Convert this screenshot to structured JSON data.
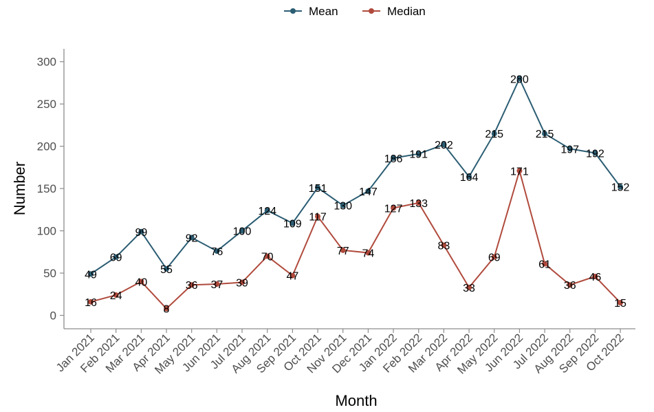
{
  "chart_data": {
    "type": "line",
    "xlabel": "Month",
    "ylabel": "Number",
    "ylim": [
      0,
      300
    ],
    "yticks": [
      0,
      50,
      100,
      150,
      200,
      250,
      300
    ],
    "grid": false,
    "legend_position": "top",
    "categories": [
      "Jan 2021",
      "Feb 2021",
      "Mar 2021",
      "Apr 2021",
      "May 2021",
      "Jun 2021",
      "Jul 2021",
      "Aug 2021",
      "Sep 2021",
      "Oct 2021",
      "Nov 2021",
      "Dec 2021",
      "Jan 2022",
      "Feb 2022",
      "Mar 2022",
      "Apr 2022",
      "May 2022",
      "Jun 2022",
      "Jul 2022",
      "Aug 2022",
      "Sep 2022",
      "Oct 2022"
    ],
    "series": [
      {
        "name": "Mean",
        "color": "#2b5d73",
        "values": [
          49,
          69,
          99,
          55,
          92,
          76,
          100,
          124,
          109,
          151,
          130,
          147,
          186,
          191,
          202,
          164,
          215,
          280,
          215,
          197,
          192,
          152
        ]
      },
      {
        "name": "Median",
        "color": "#b04a3c",
        "values": [
          16,
          24,
          40,
          8,
          36,
          37,
          39,
          70,
          47,
          117,
          77,
          74,
          127,
          133,
          83,
          33,
          69,
          171,
          61,
          36,
          46,
          15
        ]
      }
    ]
  }
}
